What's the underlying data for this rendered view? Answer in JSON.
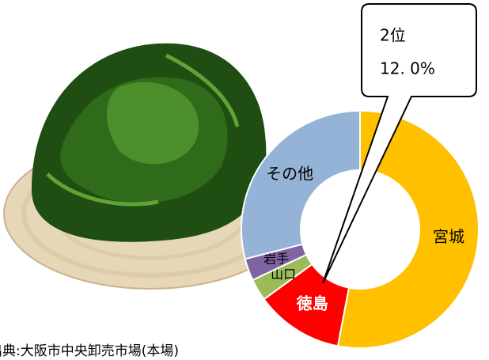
{
  "chart_data": {
    "type": "donut",
    "categories": [
      "宮城",
      "徳島",
      "山口",
      "岩手",
      "その他"
    ],
    "values": [
      53,
      12.0,
      3,
      3,
      29
    ],
    "value_labels": [
      null,
      "12. 0%",
      null,
      null,
      null
    ],
    "colors": [
      "#ffc000",
      "#ff0000",
      "#9bbb59",
      "#8064a2",
      "#95b3d7"
    ],
    "label_colors": [
      "#000000",
      "#ffffff",
      "#000000",
      "#000000",
      "#000000"
    ],
    "annotation": "2位",
    "source": "出典:大阪市中央卸売市場(本場)"
  }
}
